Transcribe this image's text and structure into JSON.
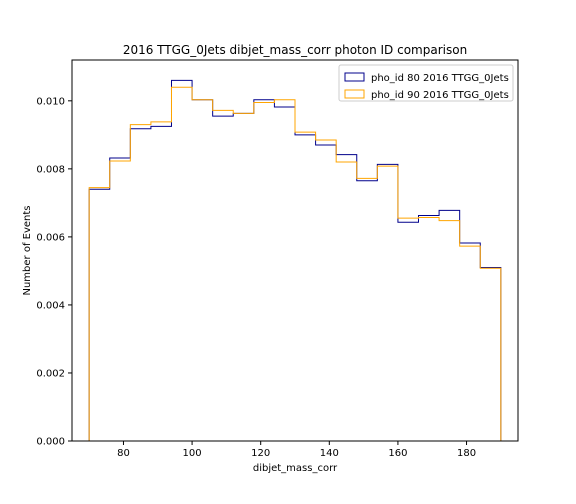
{
  "chart_data": {
    "type": "histogram-step",
    "title": "2016 TTGG_0Jets dibjet_mass_corr photon ID comparison",
    "xlabel": "dibjet_mass_corr",
    "ylabel": "Number of Events",
    "xlim": [
      65,
      195
    ],
    "ylim": [
      0,
      0.0112
    ],
    "xticks": [
      80,
      100,
      120,
      140,
      160,
      180
    ],
    "xtick_labels": [
      "80",
      "100",
      "120",
      "140",
      "160",
      "180"
    ],
    "yticks": [
      0,
      0.002,
      0.004,
      0.006,
      0.008,
      0.01
    ],
    "ytick_labels": [
      "0.000",
      "0.002",
      "0.004",
      "0.006",
      "0.008",
      "0.010"
    ],
    "bin_edges": [
      70,
      76,
      82,
      88,
      94,
      100,
      106,
      112,
      118,
      124,
      130,
      136,
      142,
      148,
      154,
      160,
      166,
      172,
      178,
      184,
      190
    ],
    "legend_position": "top-right",
    "series": [
      {
        "name": "pho_id 80 2016 TTGG_0Jets",
        "color": "#00008b",
        "values": [
          0.0074,
          0.00832,
          0.00918,
          0.00925,
          0.0106,
          0.01003,
          0.00955,
          0.00963,
          0.01003,
          0.00982,
          0.009,
          0.0087,
          0.00842,
          0.00765,
          0.00813,
          0.00643,
          0.00663,
          0.00678,
          0.00582,
          0.0051
        ]
      },
      {
        "name": "pho_id 90 2016 TTGG_0Jets",
        "color": "#ffa500",
        "values": [
          0.00745,
          0.00823,
          0.0093,
          0.00938,
          0.0104,
          0.01003,
          0.00972,
          0.00963,
          0.00995,
          0.01003,
          0.00908,
          0.00885,
          0.0082,
          0.00772,
          0.00808,
          0.00655,
          0.00657,
          0.00648,
          0.00573,
          0.00508
        ]
      }
    ]
  }
}
